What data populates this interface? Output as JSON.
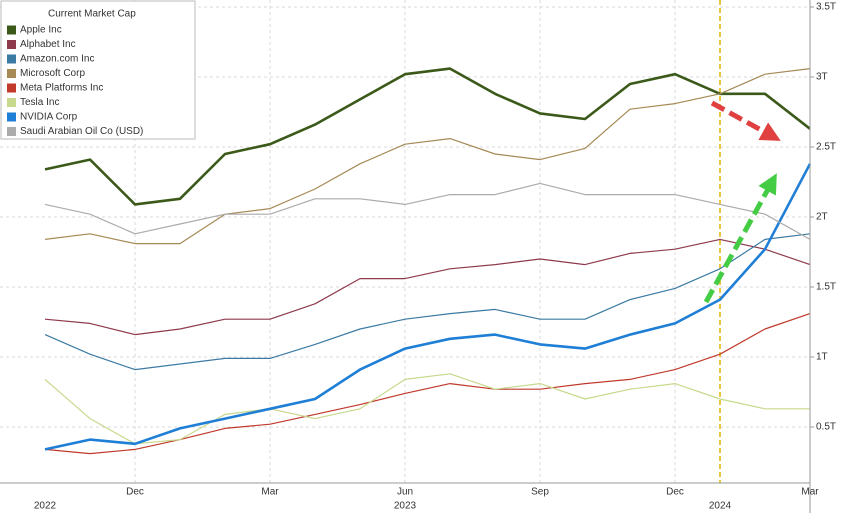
{
  "chart_data": {
    "type": "line",
    "legend_title": "Current Market Cap",
    "x": [
      "2022-10",
      "2022-11",
      "2022-12",
      "2023-01",
      "2023-02",
      "2023-03",
      "2023-04",
      "2023-05",
      "2023-06",
      "2023-07",
      "2023-08",
      "2023-09",
      "2023-10",
      "2023-11",
      "2023-12",
      "2024-01",
      "2024-02",
      "2024-03"
    ],
    "xlim": [
      "2022-09",
      "2024-03"
    ],
    "xticks": [
      {
        "value": "2022-12",
        "label": "Dec"
      },
      {
        "value": "2023-03",
        "label": "Mar"
      },
      {
        "value": "2023-06",
        "label": "Jun"
      },
      {
        "value": "2023-09",
        "label": "Sep"
      },
      {
        "value": "2023-12",
        "label": "Dec"
      },
      {
        "value": "2024-03",
        "label": "Mar"
      }
    ],
    "year_labels": [
      {
        "value": "2022-10",
        "label": "2022"
      },
      {
        "value": "2023-06",
        "label": "2023"
      },
      {
        "value": "2024-01",
        "label": "2024"
      }
    ],
    "ylim": [
      0.1,
      3.55
    ],
    "yticks": [
      {
        "value": 0.5,
        "label": "0.5T"
      },
      {
        "value": 1,
        "label": "1T"
      },
      {
        "value": 1.5,
        "label": "1.5T"
      },
      {
        "value": 2,
        "label": "2T"
      },
      {
        "value": 2.5,
        "label": "2.5T"
      },
      {
        "value": 3,
        "label": "3T"
      },
      {
        "value": 3.5,
        "label": "3.5T"
      }
    ],
    "grid": true,
    "legend": "top-left",
    "vline": {
      "x": "2024-01",
      "color": "#e8b400"
    },
    "series": [
      {
        "name": "Apple Inc",
        "color": "#3b5a1a",
        "values": [
          2.34,
          2.41,
          2.09,
          2.13,
          2.45,
          2.52,
          2.66,
          2.84,
          3.02,
          3.06,
          2.88,
          2.74,
          2.7,
          2.95,
          3.02,
          2.88,
          2.88,
          2.63
        ]
      },
      {
        "name": "Alphabet Inc",
        "color": "#8e3a4c",
        "values": [
          1.27,
          1.24,
          1.16,
          1.2,
          1.27,
          1.27,
          1.38,
          1.56,
          1.56,
          1.63,
          1.66,
          1.7,
          1.66,
          1.74,
          1.77,
          1.84,
          1.77,
          1.66
        ]
      },
      {
        "name": "Amazon.com Inc",
        "color": "#3b7ba3",
        "values": [
          1.16,
          1.02,
          0.91,
          0.95,
          0.99,
          0.99,
          1.09,
          1.2,
          1.27,
          1.31,
          1.34,
          1.27,
          1.27,
          1.41,
          1.49,
          1.63,
          1.84,
          1.88
        ]
      },
      {
        "name": "Microsoft Corp",
        "color": "#a58a55",
        "values": [
          1.84,
          1.88,
          1.81,
          1.81,
          2.02,
          2.06,
          2.2,
          2.38,
          2.52,
          2.56,
          2.45,
          2.41,
          2.49,
          2.77,
          2.81,
          2.88,
          3.02,
          3.06
        ]
      },
      {
        "name": "Meta Platforms Inc",
        "color": "#c0392b",
        "values": [
          0.34,
          0.31,
          0.34,
          0.41,
          0.49,
          0.52,
          0.59,
          0.66,
          0.74,
          0.81,
          0.77,
          0.77,
          0.81,
          0.84,
          0.91,
          1.02,
          1.2,
          1.31
        ]
      },
      {
        "name": "Tesla Inc",
        "color": "#c6d98c",
        "values": [
          0.84,
          0.56,
          0.38,
          0.41,
          0.59,
          0.63,
          0.56,
          0.63,
          0.84,
          0.88,
          0.77,
          0.81,
          0.7,
          0.77,
          0.81,
          0.7,
          0.63,
          0.63
        ]
      },
      {
        "name": "NVIDIA Corp",
        "color": "#1f7fd6",
        "values": [
          0.34,
          0.41,
          0.38,
          0.49,
          0.56,
          0.63,
          0.7,
          0.91,
          1.06,
          1.13,
          1.16,
          1.09,
          1.06,
          1.16,
          1.24,
          1.41,
          1.77,
          2.38
        ]
      },
      {
        "name": "Saudi Arabian Oil Co (USD)",
        "color": "#ababab",
        "values": [
          2.09,
          2.02,
          1.88,
          1.95,
          2.02,
          2.02,
          2.13,
          2.13,
          2.09,
          2.16,
          2.16,
          2.24,
          2.16,
          2.16,
          2.16,
          2.09,
          2.02,
          1.84
        ]
      }
    ]
  }
}
